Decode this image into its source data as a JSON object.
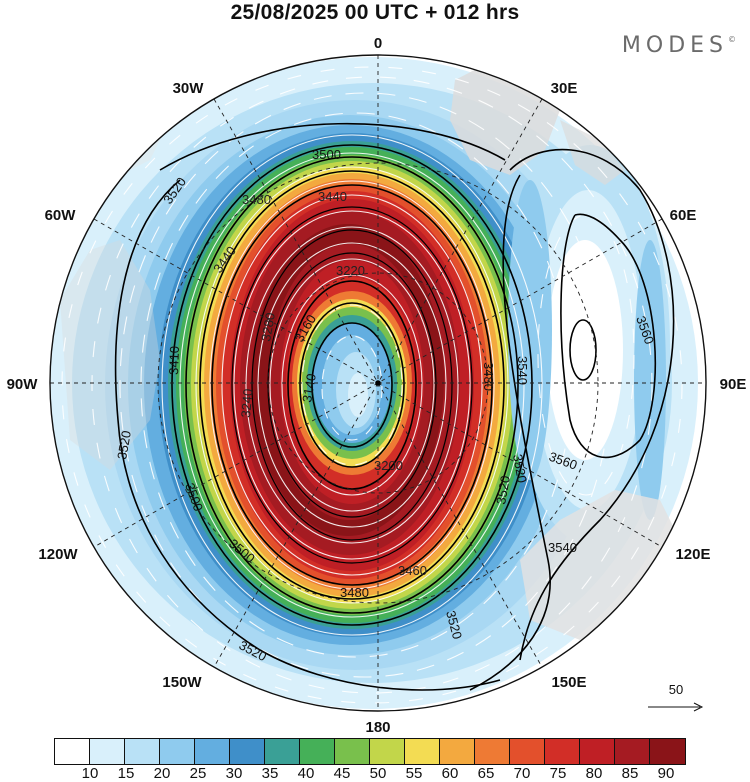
{
  "header": {
    "title": "25/08/2025  00 UTC  + 012 hrs",
    "brand": "MODES",
    "brand_mark": "©"
  },
  "map": {
    "projection": "south-polar stereographic",
    "longitude_labels": {
      "lon_0": "0",
      "lon_30e": "30E",
      "lon_60e": "60E",
      "lon_90e": "90E",
      "lon_120e": "120E",
      "lon_150e": "150E",
      "lon_180": "180",
      "lon_150w": "150W",
      "lon_120w": "120W",
      "lon_90w": "90W",
      "lon_60w": "60W",
      "lon_30w": "30W"
    },
    "contour_labels": [
      {
        "id": "c3500a",
        "text": "3500"
      },
      {
        "id": "c3520a",
        "text": "3520"
      },
      {
        "id": "c3480a",
        "text": "3480"
      },
      {
        "id": "c3440a",
        "text": "3440"
      },
      {
        "id": "c3440b",
        "text": "3440"
      },
      {
        "id": "c3220",
        "text": "3220"
      },
      {
        "id": "c3160",
        "text": "3160"
      },
      {
        "id": "c3140",
        "text": "3140"
      },
      {
        "id": "c3280",
        "text": "3280"
      },
      {
        "id": "c3240",
        "text": "3240"
      },
      {
        "id": "c3410",
        "text": "3410"
      },
      {
        "id": "c3520b",
        "text": "3520"
      },
      {
        "id": "c3500b",
        "text": "3500"
      },
      {
        "id": "c3500c",
        "text": "3500"
      },
      {
        "id": "c3480b",
        "text": "3480"
      },
      {
        "id": "c3460",
        "text": "3460"
      },
      {
        "id": "c3520c",
        "text": "3520"
      },
      {
        "id": "c3520d",
        "text": "3520"
      },
      {
        "id": "c3540a",
        "text": "3540"
      },
      {
        "id": "c3540b",
        "text": "3540"
      },
      {
        "id": "c3560a",
        "text": "3560"
      },
      {
        "id": "c3560b",
        "text": "3560"
      },
      {
        "id": "c3520e",
        "text": "3520"
      },
      {
        "id": "c3520f",
        "text": "3520"
      },
      {
        "id": "c3200",
        "text": "3200"
      },
      {
        "id": "c3480c",
        "text": "3480"
      }
    ],
    "reference_vector_label": "50"
  },
  "colorbar": {
    "colors": [
      "#ffffff",
      "#d9f0fb",
      "#b9e1f6",
      "#8fcbee",
      "#63aee0",
      "#3f8fc9",
      "#3aa096",
      "#45b058",
      "#79c04c",
      "#c2d64a",
      "#f3dc53",
      "#f3a93f",
      "#ee7a34",
      "#e3502c",
      "#d22e27",
      "#bf1f25",
      "#a51b22",
      "#8a1418"
    ],
    "labels": [
      "10",
      "15",
      "20",
      "25",
      "30",
      "35",
      "40",
      "45",
      "50",
      "55",
      "60",
      "65",
      "70",
      "75",
      "80",
      "85",
      "90"
    ]
  }
}
